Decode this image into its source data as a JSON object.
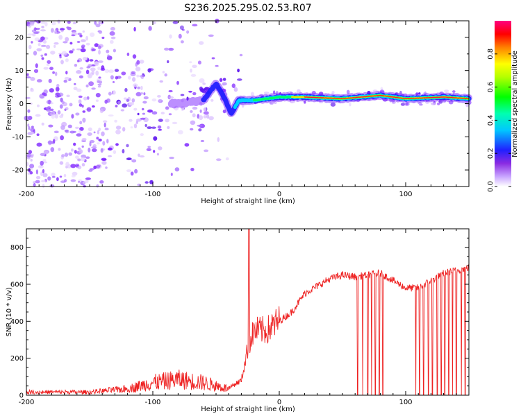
{
  "title": "S236.2025.295.02.53.R07",
  "chart_data": [
    {
      "type": "heatmap",
      "name": "spectrogram",
      "xlabel": "Height of straight line (km)",
      "ylabel": "Frequency (Hz)",
      "xlim": [
        -200,
        150
      ],
      "ylim": [
        -25,
        25
      ],
      "xticks": [
        -200,
        -100,
        0,
        100
      ],
      "yticks": [
        -20,
        -10,
        0,
        10,
        20
      ],
      "colorbar": {
        "label": "Normalized spectral amplitude",
        "range": [
          0,
          1
        ],
        "ticks": [
          "0.0",
          "0.2",
          "0.4",
          "0.6",
          "0.8"
        ],
        "tick_values": [
          0.0,
          0.2,
          0.4,
          0.6,
          0.8
        ],
        "colors": [
          "#ffffff",
          "#9b30ff",
          "#0000ff",
          "#00ffff",
          "#00ff00",
          "#ffff00",
          "#ff8000",
          "#ff0000",
          "#ff00a0"
        ]
      },
      "ridge": [
        {
          "x": -80,
          "f": 0
        },
        {
          "x": -60,
          "f": 1
        },
        {
          "x": -50,
          "f": 6
        },
        {
          "x": -45,
          "f": 3
        },
        {
          "x": -38,
          "f": -3
        },
        {
          "x": -32,
          "f": 1
        },
        {
          "x": -20,
          "f": 1
        },
        {
          "x": 0,
          "f": 2
        },
        {
          "x": 20,
          "f": 2
        },
        {
          "x": 50,
          "f": 1.5
        },
        {
          "x": 80,
          "f": 2.5
        },
        {
          "x": 100,
          "f": 1.5
        },
        {
          "x": 130,
          "f": 2
        },
        {
          "x": 150,
          "f": 1.5
        }
      ]
    },
    {
      "type": "line",
      "name": "snr",
      "xlabel": "Height of straight line (km)",
      "ylabel": "SNR (10 * v/v)",
      "xlim": [
        -200,
        150
      ],
      "ylim": [
        0,
        900
      ],
      "xticks": [
        -200,
        -100,
        0,
        100
      ],
      "yticks": [
        0,
        200,
        400,
        600,
        800
      ],
      "color": "#ee2222",
      "envelope": [
        {
          "x": -200,
          "y": 20
        },
        {
          "x": -150,
          "y": 20
        },
        {
          "x": -120,
          "y": 40
        },
        {
          "x": -100,
          "y": 80
        },
        {
          "x": -80,
          "y": 100
        },
        {
          "x": -60,
          "y": 80
        },
        {
          "x": -40,
          "y": 40
        },
        {
          "x": -30,
          "y": 80
        },
        {
          "x": -25,
          "y": 250
        },
        {
          "x": -20,
          "y": 350
        },
        {
          "x": -10,
          "y": 350
        },
        {
          "x": 0,
          "y": 400
        },
        {
          "x": 10,
          "y": 450
        },
        {
          "x": 20,
          "y": 550
        },
        {
          "x": 40,
          "y": 630
        },
        {
          "x": 50,
          "y": 650
        },
        {
          "x": 60,
          "y": 640
        },
        {
          "x": 80,
          "y": 660
        },
        {
          "x": 100,
          "y": 580
        },
        {
          "x": 110,
          "y": 580
        },
        {
          "x": 130,
          "y": 660
        },
        {
          "x": 150,
          "y": 690
        }
      ],
      "spike": {
        "x": -24,
        "y": 900
      },
      "dropouts_x": [
        62,
        66,
        70,
        73,
        76,
        79,
        82,
        108,
        111,
        114,
        118,
        121,
        125,
        128,
        131,
        134,
        137,
        140,
        144,
        147
      ]
    }
  ]
}
